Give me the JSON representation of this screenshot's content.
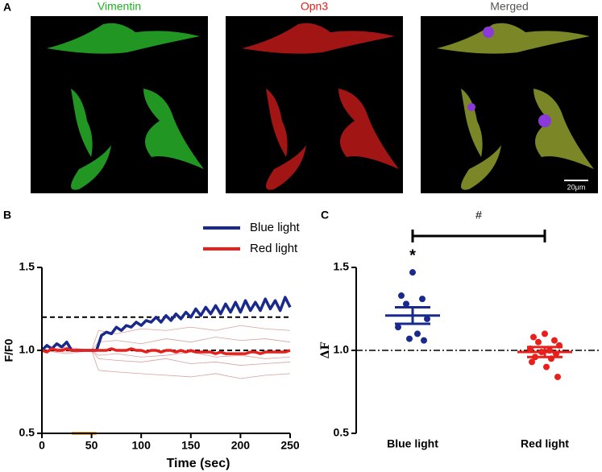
{
  "panel_a": {
    "label": "A",
    "scale_bar": "20μm",
    "images": [
      {
        "title": "Vimentin",
        "color": "#1fb31f"
      },
      {
        "title": "Opn3",
        "color": "#e0201c"
      },
      {
        "title": "Merged",
        "color": "#555555"
      }
    ]
  },
  "chart_data": [
    {
      "type": "line",
      "panel_label": "B",
      "xlabel": "Time (sec)",
      "ylabel": "F/F0",
      "xlim": [
        0,
        250
      ],
      "xticks": [
        0,
        50,
        100,
        150,
        200,
        250
      ],
      "ylim": [
        0.5,
        1.5
      ],
      "yticks": [
        0.5,
        {
          "value": 1.0,
          "label": "1.0"
        },
        1.5
      ],
      "x": [
        0,
        5,
        10,
        15,
        20,
        25,
        30,
        35,
        40,
        45,
        50,
        55,
        60,
        65,
        70,
        75,
        80,
        85,
        90,
        95,
        100,
        105,
        110,
        115,
        120,
        125,
        130,
        135,
        140,
        145,
        150,
        155,
        160,
        165,
        170,
        175,
        180,
        185,
        190,
        195,
        200,
        205,
        210,
        215,
        220,
        225,
        230,
        235,
        240,
        245,
        250
      ],
      "series": [
        {
          "name": "Blue light",
          "color": "#1a2a8c",
          "values": [
            1.0,
            1.03,
            1.01,
            1.04,
            1.02,
            1.05,
            1.0,
            1.0,
            1.0,
            1.0,
            1.0,
            1.0,
            1.09,
            1.11,
            1.1,
            1.14,
            1.12,
            1.15,
            1.14,
            1.17,
            1.15,
            1.18,
            1.17,
            1.2,
            1.17,
            1.21,
            1.18,
            1.22,
            1.19,
            1.23,
            1.2,
            1.25,
            1.21,
            1.26,
            1.22,
            1.27,
            1.22,
            1.28,
            1.23,
            1.29,
            1.23,
            1.3,
            1.24,
            1.29,
            1.24,
            1.31,
            1.25,
            1.3,
            1.24,
            1.32,
            1.26
          ]
        },
        {
          "name": "Red light",
          "color": "#e8201c",
          "values": [
            1.0,
            0.99,
            1.01,
            1.0,
            1.0,
            1.01,
            1.0,
            1.0,
            1.0,
            1.0,
            1.0,
            1.0,
            1.0,
            1.0,
            1.01,
            1.0,
            1.0,
            1.0,
            1.01,
            1.0,
            1.0,
            0.99,
            1.0,
            1.0,
            0.99,
            1.0,
            1.0,
            0.99,
            1.0,
            0.99,
            1.0,
            0.99,
            0.99,
            0.99,
            0.99,
            0.98,
            0.99,
            0.98,
            0.98,
            0.98,
            0.98,
            0.98,
            0.99,
            0.99,
            0.98,
            0.99,
            0.99,
            0.99,
            0.99,
            0.99,
            1.0
          ]
        }
      ],
      "trace_color": "#d9a0a0",
      "trace_x": [
        0,
        25,
        50,
        57,
        75,
        100,
        125,
        150,
        175,
        200,
        225,
        250
      ],
      "traces": [
        [
          1.0,
          1.02,
          1.0,
          1.12,
          1.1,
          1.13,
          1.12,
          1.14,
          1.12,
          1.15,
          1.13,
          1.12
        ],
        [
          1.0,
          0.98,
          1.0,
          1.05,
          1.06,
          1.04,
          1.07,
          1.05,
          1.08,
          1.06,
          1.07,
          1.05
        ],
        [
          1.0,
          1.01,
          1.0,
          0.95,
          0.94,
          0.93,
          0.95,
          0.92,
          0.93,
          0.91,
          0.92,
          0.93
        ],
        [
          1.0,
          0.99,
          1.0,
          0.88,
          0.87,
          0.86,
          0.85,
          0.84,
          0.86,
          0.83,
          0.85,
          0.86
        ],
        [
          1.0,
          1.0,
          1.0,
          0.97,
          0.98,
          0.96,
          0.97,
          0.99,
          0.96,
          0.97,
          0.95,
          0.96
        ]
      ],
      "hlines": [
        1.2,
        1.0
      ],
      "stimulus": {
        "start": 30,
        "end": 55,
        "color": "#f2b21c"
      }
    },
    {
      "type": "dotplot",
      "panel_label": "C",
      "ylabel": "ΔF",
      "ylim": [
        0.5,
        1.5
      ],
      "yticks": [
        0.5,
        {
          "value": 1.0,
          "label": "1.0"
        },
        1.5
      ],
      "categories": [
        "Blue light",
        "Red light"
      ],
      "groups": [
        {
          "color": "#1a2a8c",
          "points": [
            1.47,
            1.33,
            1.31,
            1.28,
            1.19,
            1.14,
            1.1,
            1.07,
            1.06
          ],
          "mean": 1.21,
          "sem": 0.05
        },
        {
          "color": "#e8201c",
          "points": [
            1.1,
            1.08,
            1.06,
            1.05,
            1.03,
            1.01,
            1.0,
            0.99,
            0.98,
            0.96,
            0.95,
            0.93,
            0.9,
            0.84
          ],
          "mean": 0.99,
          "sem": 0.03
        }
      ],
      "hline": 1.0,
      "star": "*",
      "bracket_label": "#"
    }
  ]
}
